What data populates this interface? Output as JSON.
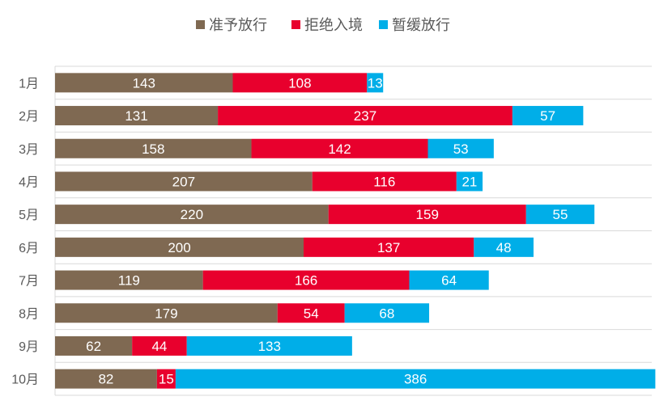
{
  "chart_data": {
    "type": "bar",
    "orientation": "horizontal",
    "stacked": true,
    "title": "",
    "xlabel": "",
    "ylabel": "",
    "legend_position": "top",
    "grid": true,
    "xlim": [
      0,
      600
    ],
    "categories": [
      "1月",
      "2月",
      "3月",
      "4月",
      "5月",
      "6月",
      "7月",
      "8月",
      "9月",
      "10月"
    ],
    "series": [
      {
        "name": "准予放行",
        "color": "#7f6952",
        "values": [
          143,
          131,
          158,
          207,
          220,
          200,
          119,
          179,
          62,
          82
        ]
      },
      {
        "name": "拒绝入境",
        "color": "#e8002d",
        "values": [
          108,
          237,
          142,
          116,
          159,
          137,
          166,
          54,
          44,
          15
        ]
      },
      {
        "name": "暂缓放行",
        "color": "#00aee8",
        "values": [
          13,
          57,
          53,
          21,
          55,
          48,
          64,
          68,
          133,
          386
        ]
      }
    ]
  }
}
